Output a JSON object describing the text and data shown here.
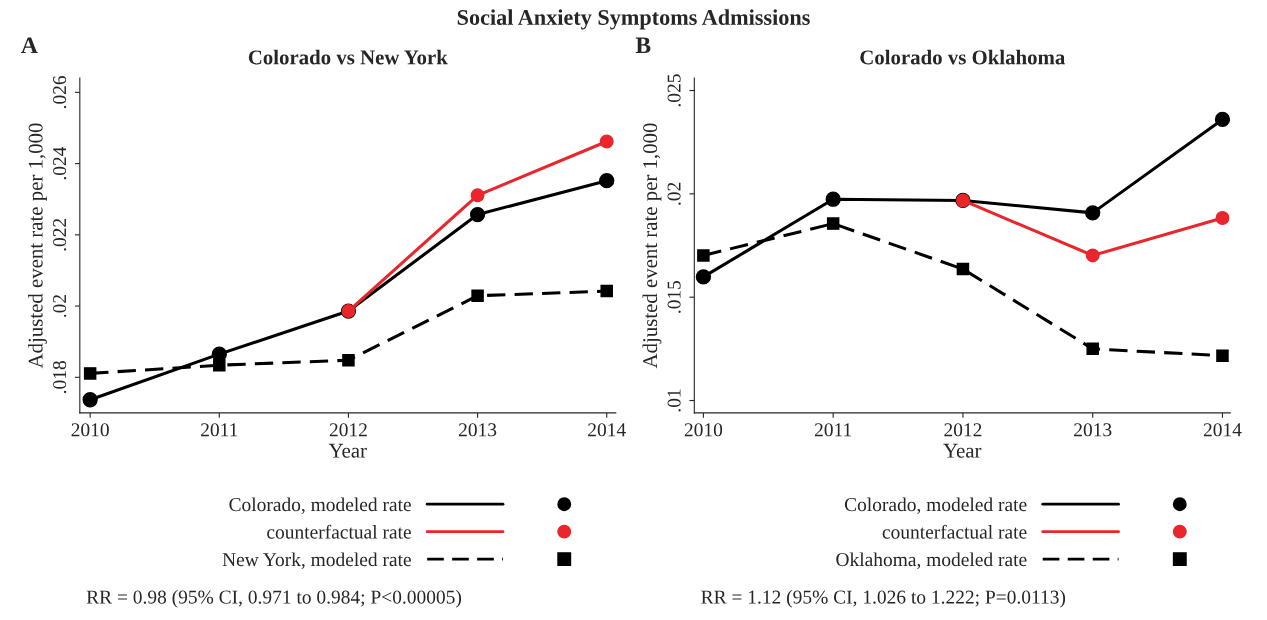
{
  "chart_data": [
    {
      "type": "line",
      "title": "Colorado vs New York",
      "xlabel": "Year",
      "ylabel": "Adjusted event rate per 1,000",
      "x": [
        2010,
        2011,
        2012,
        2013,
        2014
      ],
      "series": [
        {
          "name": "Colorado, modeled rate",
          "color": "#000000",
          "marker": "circle",
          "line_style": "solid",
          "values": [
            0.01737,
            0.01865,
            0.01986,
            0.02257,
            0.02352
          ]
        },
        {
          "name": "counterfactual rate",
          "color": "#e8262b",
          "marker": "circle",
          "line_style": "solid",
          "values": [
            null,
            null,
            0.01986,
            0.02311,
            0.02462
          ]
        },
        {
          "name": "New York, modeled rate",
          "color": "#000000",
          "marker": "square",
          "line_style": "dashed",
          "values": [
            0.01811,
            0.01834,
            0.01848,
            0.02029,
            0.02042
          ]
        }
      ],
      "xlim": [
        2009.92,
        2014.07
      ],
      "xticks": [
        2010,
        2011,
        2012,
        2013,
        2014
      ],
      "ylim": [
        0.017,
        0.0264
      ],
      "yticks": [
        {
          "value": 0.018,
          "label": ".018"
        },
        {
          "value": 0.02,
          "label": ".02"
        },
        {
          "value": 0.022,
          "label": ".022"
        },
        {
          "value": 0.024,
          "label": ".024"
        },
        {
          "value": 0.026,
          "label": ".026"
        }
      ],
      "grid": false,
      "legend": "bottom",
      "annotations": [
        "Social Anxiety Symptoms Admissions",
        "A",
        "RR = 0.98 (95% CI, 0.971 to 0.984; P<0.00005)"
      ]
    },
    {
      "type": "line",
      "title": "Colorado vs Oklahoma",
      "xlabel": "Year",
      "ylabel": "Adjusted event rate per 1,000",
      "x": [
        2010,
        2011,
        2012,
        2013,
        2014
      ],
      "series": [
        {
          "name": "Colorado, modeled rate",
          "color": "#000000",
          "marker": "circle",
          "line_style": "solid",
          "values": [
            0.01598,
            0.01974,
            0.01968,
            0.01908,
            0.0236
          ]
        },
        {
          "name": "counterfactual rate",
          "color": "#e8262b",
          "marker": "circle",
          "line_style": "solid",
          "values": [
            null,
            null,
            0.01968,
            0.01702,
            0.01883
          ]
        },
        {
          "name": "Oklahoma, modeled rate",
          "color": "#000000",
          "marker": "square",
          "line_style": "dashed",
          "values": [
            0.01702,
            0.01856,
            0.01636,
            0.0125,
            0.01217
          ]
        }
      ],
      "xlim": [
        2009.93,
        2014.06
      ],
      "xticks": [
        2010,
        2011,
        2012,
        2013,
        2014
      ],
      "ylim": [
        0.0094,
        0.0256
      ],
      "yticks": [
        {
          "value": 0.01,
          "label": ".01"
        },
        {
          "value": 0.015,
          "label": ".015"
        },
        {
          "value": 0.02,
          "label": ".02"
        },
        {
          "value": 0.025,
          "label": ".025"
        }
      ],
      "grid": false,
      "legend": "bottom",
      "annotations": [
        "B",
        "RR = 1.12 (95% CI, 1.026 to 1.222; P=0.0113)"
      ]
    }
  ]
}
